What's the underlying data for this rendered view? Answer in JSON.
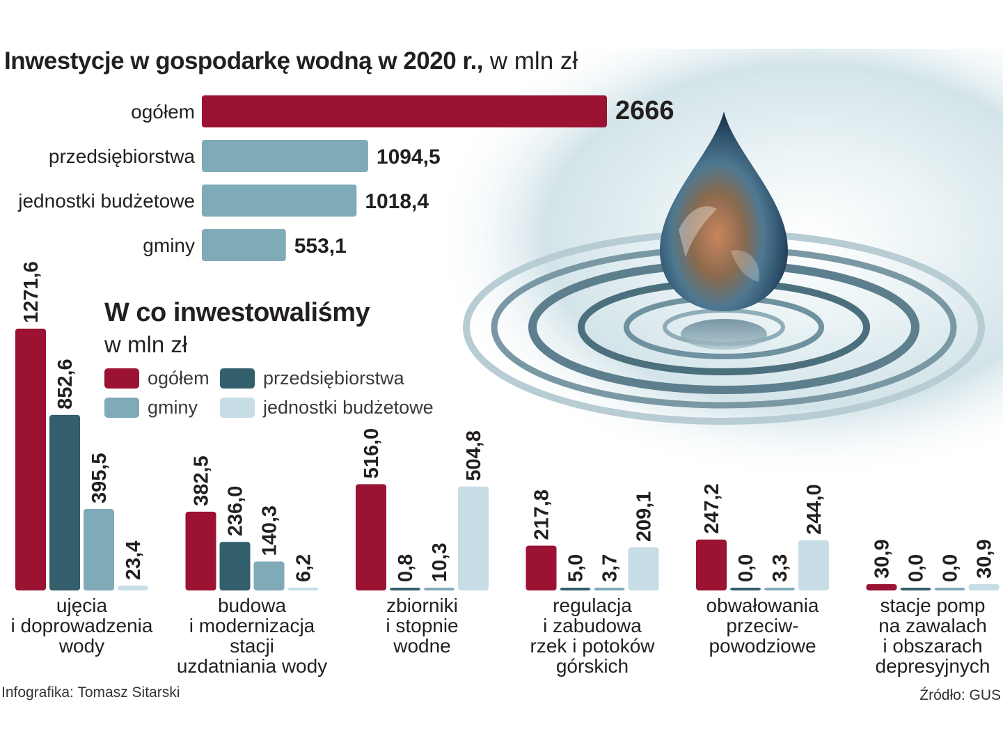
{
  "title": {
    "main": "Inwestycje w gospodarkę wodną w 2020 r.,",
    "unit": " w mln zł"
  },
  "subtitle": {
    "main": "W co inwestowaliśmy",
    "unit": "w mln zł"
  },
  "legend": [
    {
      "name": "ogółem",
      "color": "#9b1232"
    },
    {
      "name": "przedsiębiorstwa",
      "color": "#335e6c"
    },
    {
      "name": "gminy",
      "color": "#7faab8"
    },
    {
      "name": "jednostki budżetowe",
      "color": "#c6dde6"
    }
  ],
  "credit": "Infografika: Tomasz Sitarski",
  "source": "Źródło: GUS",
  "chart_data": [
    {
      "type": "bar",
      "orientation": "horizontal",
      "title": "Inwestycje w gospodarkę wodną w 2020 r., w mln zł",
      "categories": [
        "ogółem",
        "przedsiębiorstwa",
        "jednostki budżetowe",
        "gminy"
      ],
      "values": [
        2666,
        1094.5,
        1018.4,
        553.1
      ],
      "value_labels": [
        "2666",
        "1094,5",
        "1018,4",
        "553,1"
      ],
      "colors": [
        "#9b1232",
        "#7faab8",
        "#7faab8",
        "#7faab8"
      ],
      "xlim": [
        0,
        2666
      ]
    },
    {
      "type": "bar",
      "orientation": "vertical",
      "title": "W co inwestowaliśmy",
      "ylabel": "w mln zł",
      "series_names": [
        "ogółem",
        "przedsiębiorstwa",
        "gminy",
        "jednostki budżetowe"
      ],
      "categories": [
        {
          "lines": [
            "ujęcia",
            "i doprowadzenia",
            "wody"
          ],
          "values": [
            1271.6,
            852.6,
            395.5,
            23.4
          ],
          "labels": [
            "1271,6",
            "852,6",
            "395,5",
            "23,4"
          ]
        },
        {
          "lines": [
            "budowa",
            "i modernizacja",
            "stacji",
            "uzdatniania wody"
          ],
          "values": [
            382.5,
            236.0,
            140.3,
            6.2
          ],
          "labels": [
            "382,5",
            "236,0",
            "140,3",
            "6,2"
          ]
        },
        {
          "lines": [
            "zbiorniki",
            "i stopnie",
            "wodne"
          ],
          "values": [
            516.0,
            0.8,
            10.3,
            504.8
          ],
          "labels": [
            "516,0",
            "0,8",
            "10,3",
            "504,8"
          ]
        },
        {
          "lines": [
            "regulacja",
            "i zabudowa",
            "rzek i potoków",
            "górskich"
          ],
          "values": [
            217.8,
            5.0,
            3.7,
            209.1
          ],
          "labels": [
            "217,8",
            "5,0",
            "3,7",
            "209,1"
          ]
        },
        {
          "lines": [
            "obwałowania",
            "przeciw-",
            "powodziowe"
          ],
          "values": [
            247.2,
            0.0,
            3.3,
            244.0
          ],
          "labels": [
            "247,2",
            "0,0",
            "3,3",
            "244,0"
          ]
        },
        {
          "lines": [
            "stacje pomp",
            "na zawalach",
            "i obszarach",
            "depresyjnych"
          ],
          "values": [
            30.9,
            0.0,
            0.0,
            30.9
          ],
          "labels": [
            "30,9",
            "0,0",
            "0,0",
            "30,9"
          ]
        }
      ],
      "ylim": [
        0,
        1271.6
      ]
    }
  ]
}
